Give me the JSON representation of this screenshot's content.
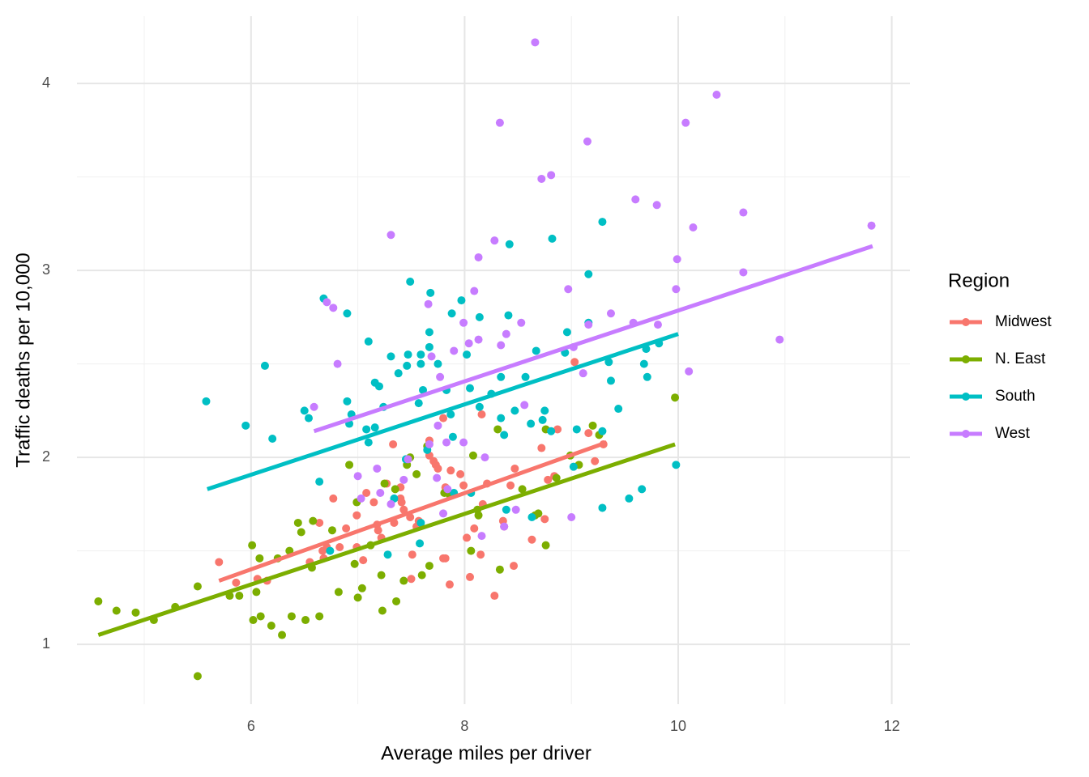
{
  "chart_data": {
    "type": "scatter",
    "x_label": "Average miles per driver",
    "y_label": "Traffic deaths per 10,000",
    "legend_title": "Region",
    "legend_position": "right",
    "grid": true,
    "xlim": [
      4.37,
      12.17
    ],
    "ylim": [
      0.68,
      4.36
    ],
    "xticks": [
      6,
      8,
      10,
      12
    ],
    "yticks": [
      1,
      2,
      3,
      4
    ],
    "series": [
      {
        "name": "Midwest",
        "color": "#F8766D",
        "x": [
          5.7,
          5.86,
          6.15,
          6.06,
          6.55,
          6.64,
          6.68,
          6.77,
          6.67,
          6.71,
          6.83,
          6.89,
          6.99,
          6.99,
          7.05,
          7.08,
          7.15,
          7.18,
          7.19,
          7.22,
          7.27,
          7.33,
          7.34,
          7.4,
          7.4,
          7.41,
          7.43,
          7.49,
          7.51,
          7.5,
          7.55,
          7.57,
          7.67,
          7.67,
          7.71,
          7.73,
          7.75,
          7.8,
          7.82,
          7.8,
          7.82,
          7.86,
          7.96,
          7.99,
          8.02,
          8.05,
          8.09,
          8.15,
          8.16,
          8.17,
          8.21,
          8.28,
          8.36,
          8.37,
          8.43,
          8.46,
          8.47,
          8.63,
          8.72,
          8.75,
          8.78,
          8.84,
          8.87,
          9.03,
          9.16,
          9.22,
          9.3,
          7.87
        ],
        "y": [
          1.44,
          1.33,
          1.34,
          1.35,
          1.44,
          1.65,
          1.46,
          1.78,
          1.5,
          1.52,
          1.52,
          1.62,
          1.69,
          1.52,
          1.45,
          1.81,
          1.76,
          1.64,
          1.61,
          1.57,
          1.86,
          2.07,
          1.65,
          1.84,
          1.78,
          1.76,
          1.72,
          1.68,
          1.48,
          1.35,
          1.63,
          1.66,
          2.09,
          2.01,
          1.98,
          1.96,
          1.94,
          1.46,
          1.46,
          2.21,
          1.84,
          1.32,
          1.91,
          1.85,
          1.57,
          1.36,
          1.62,
          1.48,
          2.23,
          1.75,
          1.86,
          1.26,
          1.66,
          1.63,
          1.85,
          1.42,
          1.94,
          1.56,
          2.05,
          1.67,
          1.88,
          1.9,
          2.15,
          2.51,
          2.13,
          1.98,
          2.07,
          1.93
        ],
        "fit_x": [
          5.7,
          9.33
        ],
        "fit_y": [
          1.34,
          2.08
        ]
      },
      {
        "name": "N. East",
        "color": "#7CAE00",
        "x": [
          4.57,
          4.74,
          4.92,
          5.09,
          5.29,
          5.5,
          5.5,
          5.8,
          5.89,
          6.01,
          6.08,
          6.05,
          6.02,
          6.09,
          6.19,
          6.29,
          6.25,
          6.36,
          6.38,
          6.44,
          6.47,
          6.58,
          6.51,
          6.64,
          6.57,
          6.76,
          6.82,
          6.92,
          6.97,
          7.0,
          7.04,
          7.12,
          7.22,
          7.23,
          7.36,
          7.35,
          7.25,
          7.43,
          7.46,
          7.49,
          7.55,
          7.65,
          7.6,
          7.67,
          7.81,
          7.86,
          8.06,
          8.13,
          8.08,
          8.31,
          8.33,
          8.54,
          8.66,
          8.69,
          8.76,
          8.76,
          8.86,
          8.99,
          9.07,
          9.2,
          9.97,
          9.26,
          8.12,
          6.99
        ],
        "y": [
          1.23,
          1.18,
          1.17,
          1.13,
          1.2,
          1.31,
          0.83,
          1.26,
          1.26,
          1.53,
          1.46,
          1.28,
          1.13,
          1.15,
          1.1,
          1.05,
          1.46,
          1.5,
          1.15,
          1.65,
          1.6,
          1.66,
          1.13,
          1.15,
          1.41,
          1.61,
          1.28,
          1.96,
          1.43,
          1.25,
          1.3,
          1.53,
          1.37,
          1.18,
          1.23,
          1.83,
          1.86,
          1.34,
          1.96,
          2.0,
          1.91,
          2.06,
          1.37,
          1.42,
          1.81,
          1.8,
          1.5,
          1.69,
          2.01,
          2.15,
          1.4,
          1.83,
          1.69,
          1.7,
          2.15,
          1.53,
          1.89,
          2.01,
          1.96,
          2.17,
          2.32,
          2.12,
          1.72,
          1.76
        ],
        "fit_x": [
          4.57,
          9.97
        ],
        "fit_y": [
          1.05,
          2.07
        ]
      },
      {
        "name": "South",
        "color": "#00BFC4",
        "x": [
          5.58,
          5.95,
          6.2,
          6.13,
          6.54,
          6.5,
          6.68,
          6.9,
          6.9,
          7.1,
          6.94,
          7.08,
          7.16,
          7.1,
          7.16,
          7.2,
          7.24,
          7.31,
          7.38,
          7.46,
          7.49,
          7.47,
          7.59,
          7.68,
          7.67,
          7.67,
          7.75,
          7.59,
          7.61,
          7.83,
          7.97,
          7.88,
          8.02,
          8.14,
          8.41,
          8.42,
          8.82,
          9.29,
          9.16,
          8.67,
          8.96,
          9.16,
          8.94,
          9.35,
          9.37,
          9.7,
          9.68,
          9.71,
          9.82,
          9.44,
          9.29,
          9.05,
          8.75,
          8.57,
          8.34,
          8.47,
          8.25,
          8.14,
          8.34,
          8.37,
          8.62,
          8.73,
          8.81,
          8.05,
          7.87,
          7.89,
          7.57,
          7.45,
          7.34,
          7.28,
          6.92,
          6.64,
          6.74,
          7.65,
          7.58,
          7.9,
          8.06,
          8.39,
          8.63,
          9.98,
          9.66,
          9.54,
          9.29,
          9.02,
          7.59
        ],
        "y": [
          2.3,
          2.17,
          2.1,
          2.49,
          2.21,
          2.25,
          2.85,
          2.77,
          2.3,
          2.62,
          2.23,
          2.15,
          2.16,
          2.08,
          2.4,
          2.38,
          2.27,
          2.54,
          2.45,
          2.49,
          2.94,
          2.55,
          2.5,
          2.88,
          2.67,
          2.59,
          2.5,
          2.55,
          2.36,
          2.36,
          2.84,
          2.77,
          2.55,
          2.75,
          2.76,
          3.14,
          3.17,
          3.26,
          2.98,
          2.57,
          2.67,
          2.72,
          2.56,
          2.51,
          2.41,
          2.58,
          2.5,
          2.43,
          2.61,
          2.26,
          2.14,
          2.15,
          2.25,
          2.43,
          2.43,
          2.25,
          2.34,
          2.27,
          2.21,
          2.12,
          2.18,
          2.2,
          2.14,
          2.37,
          2.23,
          2.11,
          2.29,
          1.99,
          1.78,
          1.48,
          2.18,
          1.87,
          1.5,
          2.04,
          1.54,
          1.81,
          1.81,
          1.72,
          1.68,
          1.96,
          1.83,
          1.78,
          1.73,
          1.95,
          1.65
        ],
        "fit_x": [
          5.59,
          10.0
        ],
        "fit_y": [
          1.83,
          2.66
        ]
      },
      {
        "name": "West",
        "color": "#C77CFF",
        "x": [
          8.66,
          10.36,
          8.33,
          10.07,
          9.15,
          8.81,
          8.72,
          7.31,
          11.81,
          10.14,
          10.61,
          9.6,
          9.8,
          8.28,
          8.13,
          9.99,
          10.61,
          8.97,
          9.98,
          10.95,
          10.1,
          9.37,
          9.16,
          9.58,
          9.81,
          8.53,
          8.09,
          7.66,
          7.99,
          8.39,
          8.13,
          8.04,
          8.34,
          7.9,
          7.69,
          6.77,
          6.71,
          6.81,
          6.59,
          9.11,
          9.02,
          7.77,
          8.56,
          7.75,
          7.83,
          7.99,
          8.19,
          7.18,
          7.0,
          7.21,
          7.43,
          7.74,
          7.84,
          7.8,
          8.16,
          8.37,
          8.48,
          9.0,
          7.31,
          7.03,
          7.47,
          7.67
        ],
        "y": [
          4.22,
          3.94,
          3.79,
          3.79,
          3.69,
          3.51,
          3.49,
          3.19,
          3.24,
          3.23,
          3.31,
          3.38,
          3.35,
          3.16,
          3.07,
          3.06,
          2.99,
          2.9,
          2.9,
          2.63,
          2.46,
          2.77,
          2.71,
          2.72,
          2.71,
          2.72,
          2.89,
          2.82,
          2.72,
          2.66,
          2.63,
          2.61,
          2.6,
          2.57,
          2.54,
          2.8,
          2.83,
          2.5,
          2.27,
          2.45,
          2.59,
          2.43,
          2.28,
          2.17,
          2.08,
          2.08,
          2.0,
          1.94,
          1.9,
          1.81,
          1.88,
          1.89,
          1.83,
          1.7,
          1.58,
          1.63,
          1.72,
          1.68,
          1.75,
          1.78,
          1.99,
          2.07
        ],
        "fit_x": [
          6.59,
          11.82
        ],
        "fit_y": [
          2.14,
          3.13
        ]
      }
    ]
  }
}
